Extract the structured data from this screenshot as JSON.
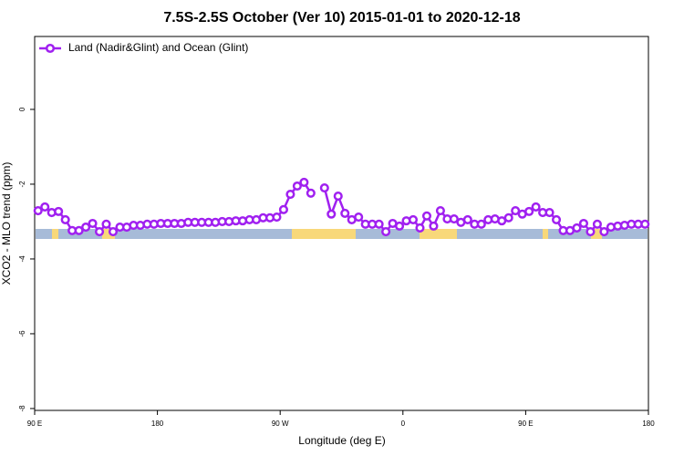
{
  "chart_data": {
    "type": "line",
    "title": "7.5S-2.5S October (Ver 10)   2015-01-01 to 2020-12-18",
    "xlabel": "Longitude (deg E)",
    "ylabel": "XCO2 - MLO trend (ppm)",
    "x": [
      92.5,
      97.5,
      102.5,
      107.5,
      112.5,
      117.5,
      122.5,
      127.5,
      132.5,
      137.5,
      142.5,
      147.5,
      152.5,
      157.5,
      162.5,
      167.5,
      172.5,
      177.5,
      182.5,
      187.5,
      192.5,
      197.5,
      202.5,
      207.5,
      212.5,
      217.5,
      222.5,
      227.5,
      232.5,
      237.5,
      242.5,
      247.5,
      252.5,
      257.5,
      262.5,
      267.5,
      272.5,
      277.5,
      282.5,
      287.5,
      292.5,
      297.5,
      302.5,
      307.5,
      312.5,
      317.5,
      322.5,
      327.5,
      332.5,
      337.5,
      342.5,
      347.5,
      352.5,
      357.5,
      362.5,
      367.5,
      372.5,
      377.5,
      382.5,
      387.5,
      392.5,
      397.5,
      402.5,
      407.5,
      412.5,
      417.5,
      422.5,
      427.5,
      432.5,
      437.5,
      442.5,
      447.5,
      452.5,
      457.5,
      462.5,
      467.5,
      472.5,
      477.5,
      482.5,
      487.5,
      492.5,
      497.5,
      502.5,
      507.5,
      512.5,
      517.5,
      522.5,
      527.5,
      532.5,
      537.5
    ],
    "series": [
      {
        "name": "Land (Nadir&Glint) and Ocean (Glint)",
        "color": "#a020f0",
        "values": [
          -2.71,
          -2.61,
          -2.76,
          -2.73,
          -2.95,
          -3.24,
          -3.24,
          -3.15,
          -3.05,
          -3.27,
          -3.07,
          -3.27,
          -3.15,
          -3.15,
          -3.1,
          -3.1,
          -3.07,
          -3.07,
          -3.05,
          -3.05,
          -3.05,
          -3.05,
          -3.02,
          -3.02,
          -3.02,
          -3.02,
          -3.02,
          -3.0,
          -3.0,
          -2.98,
          -2.98,
          -2.95,
          -2.95,
          -2.9,
          -2.9,
          -2.88,
          -2.68,
          -2.27,
          -2.05,
          -1.95,
          -2.24,
          null,
          -2.1,
          -2.8,
          -2.32,
          -2.78,
          -2.95,
          -2.88,
          -3.07,
          -3.07,
          -3.07,
          -3.27,
          -3.05,
          -3.12,
          -2.98,
          -2.95,
          -3.17,
          -2.85,
          -3.12,
          -2.71,
          -2.93,
          -2.93,
          -3.02,
          -2.95,
          -3.07,
          -3.07,
          -2.95,
          -2.93,
          -2.98,
          -2.9,
          -2.71,
          -2.8,
          -2.73,
          -2.61,
          -2.76,
          -2.76,
          -2.95,
          -3.24,
          -3.24,
          -3.17,
          -3.05,
          -3.27,
          -3.07,
          -3.27,
          -3.15,
          -3.12,
          -3.1,
          -3.07,
          -3.07,
          -3.07
        ]
      }
    ],
    "xlim": [
      90,
      540
    ],
    "xticks": [
      {
        "value": 90,
        "label": "90 E"
      },
      180,
      {
        "value": 270,
        "label": "90 W"
      },
      {
        "value": 360,
        "label": "0"
      },
      {
        "value": 450,
        "label": "90 E"
      },
      {
        "value": 540,
        "label": "180"
      }
    ],
    "ylim": [
      -8.05,
      1.95
    ],
    "yticks": [
      0,
      -2,
      -4,
      -6,
      -8
    ],
    "grid": false,
    "legend": "upper left"
  }
}
